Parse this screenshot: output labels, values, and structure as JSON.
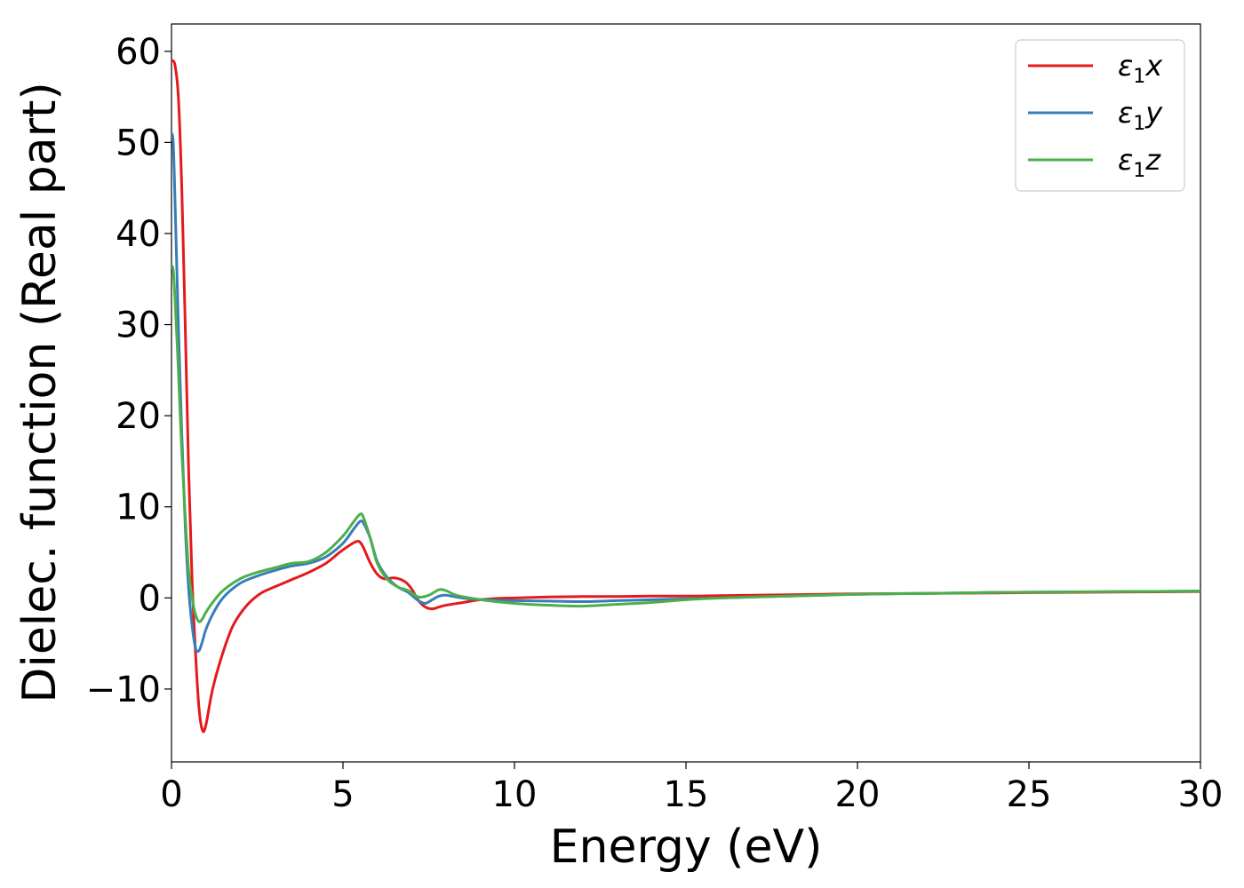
{
  "chart_data": {
    "type": "line",
    "xlabel": "Energy (eV)",
    "ylabel": "Dielec. function (Real part)",
    "xlim": [
      0,
      30
    ],
    "ylim": [
      -18,
      63
    ],
    "xticks": [
      0,
      5,
      10,
      15,
      20,
      25,
      30
    ],
    "xtick_labels": [
      "0",
      "5",
      "10",
      "15",
      "20",
      "25",
      "30"
    ],
    "yticks": [
      -10,
      0,
      10,
      20,
      30,
      40,
      50,
      60
    ],
    "ytick_labels": [
      "−10",
      "0",
      "10",
      "20",
      "30",
      "40",
      "50",
      "60"
    ],
    "grid": false,
    "legend_position": "top-right",
    "series": [
      {
        "name": "ε₁x",
        "name_main": "ε",
        "name_sub": "1",
        "name_var": "x",
        "color": "#e41a1c",
        "x": [
          0,
          0.1,
          0.2,
          0.3,
          0.4,
          0.5,
          0.6,
          0.7,
          0.8,
          0.9,
          1.0,
          1.2,
          1.5,
          1.8,
          2.2,
          2.6,
          3.0,
          3.5,
          4.0,
          4.5,
          4.9,
          5.2,
          5.4,
          5.5,
          5.6,
          5.8,
          6.0,
          6.2,
          6.5,
          6.8,
          7.0,
          7.2,
          7.4,
          7.6,
          7.8,
          8.0,
          8.5,
          9.0,
          9.5,
          10,
          11,
          12,
          13,
          14,
          15,
          16,
          17,
          18,
          19,
          20,
          22,
          24,
          26,
          28,
          30
        ],
        "y": [
          59,
          58.5,
          55,
          45,
          30,
          14,
          2,
          -6,
          -12,
          -14.5,
          -14,
          -10,
          -6,
          -3,
          -0.8,
          0.5,
          1.2,
          2.0,
          2.8,
          3.8,
          5.0,
          5.8,
          6.2,
          6.1,
          5.5,
          3.8,
          2.6,
          2.1,
          2.2,
          1.8,
          1.0,
          -0.3,
          -1.0,
          -1.2,
          -1.0,
          -0.8,
          -0.5,
          -0.2,
          -0.05,
          0.0,
          0.1,
          0.15,
          0.15,
          0.2,
          0.2,
          0.25,
          0.3,
          0.35,
          0.4,
          0.45,
          0.5,
          0.55,
          0.6,
          0.65,
          0.7
        ]
      },
      {
        "name": "ε₁y",
        "name_main": "ε",
        "name_sub": "1",
        "name_var": "y",
        "color": "#377eb8",
        "x": [
          0,
          0.05,
          0.1,
          0.2,
          0.3,
          0.4,
          0.5,
          0.6,
          0.7,
          0.8,
          0.9,
          1.0,
          1.2,
          1.5,
          2.0,
          2.5,
          3.0,
          3.5,
          4.0,
          4.5,
          5.0,
          5.3,
          5.5,
          5.6,
          5.8,
          6.0,
          6.3,
          6.6,
          6.9,
          7.2,
          7.4,
          7.6,
          7.8,
          8.0,
          8.3,
          8.7,
          9.2,
          10,
          11,
          12,
          13,
          14,
          15,
          16,
          17,
          18,
          19,
          20,
          22,
          24,
          26,
          28,
          30
        ],
        "y": [
          51,
          50,
          44,
          30,
          18,
          8,
          1,
          -3,
          -5.5,
          -5.8,
          -4.8,
          -3.5,
          -1.8,
          0,
          1.6,
          2.4,
          3.0,
          3.5,
          3.8,
          4.5,
          6.0,
          7.5,
          8.4,
          8.2,
          6.5,
          4.0,
          2.2,
          1.2,
          0.6,
          -0.3,
          -0.6,
          -0.2,
          0.2,
          0.3,
          0.1,
          -0.1,
          -0.2,
          -0.3,
          -0.35,
          -0.4,
          -0.3,
          -0.2,
          -0.1,
          0.0,
          0.1,
          0.2,
          0.3,
          0.4,
          0.5,
          0.6,
          0.65,
          0.7,
          0.75
        ]
      },
      {
        "name": "ε₁z",
        "name_main": "ε",
        "name_sub": "1",
        "name_var": "z",
        "color": "#4daf4a",
        "x": [
          0,
          0.05,
          0.1,
          0.2,
          0.3,
          0.4,
          0.5,
          0.6,
          0.7,
          0.8,
          0.9,
          1.0,
          1.2,
          1.5,
          2.0,
          2.5,
          3.0,
          3.5,
          4.0,
          4.5,
          5.0,
          5.3,
          5.5,
          5.6,
          5.8,
          6.0,
          6.3,
          6.6,
          6.9,
          7.2,
          7.5,
          7.8,
          8.0,
          8.3,
          8.7,
          9.2,
          10,
          11,
          12,
          13,
          14,
          15,
          16,
          17,
          18,
          19,
          20,
          22,
          24,
          26,
          28,
          30
        ],
        "y": [
          36.5,
          36,
          33,
          25,
          16,
          9,
          3,
          0,
          -1.8,
          -2.6,
          -2.3,
          -1.6,
          -0.5,
          0.8,
          2.1,
          2.8,
          3.3,
          3.8,
          4.0,
          5.0,
          6.8,
          8.3,
          9.2,
          8.8,
          6.5,
          3.8,
          2.0,
          1.2,
          0.8,
          0.1,
          0.3,
          0.9,
          0.8,
          0.3,
          0.0,
          -0.3,
          -0.6,
          -0.8,
          -0.9,
          -0.7,
          -0.5,
          -0.2,
          0.0,
          0.1,
          0.2,
          0.3,
          0.4,
          0.5,
          0.6,
          0.65,
          0.7,
          0.75
        ]
      }
    ]
  }
}
